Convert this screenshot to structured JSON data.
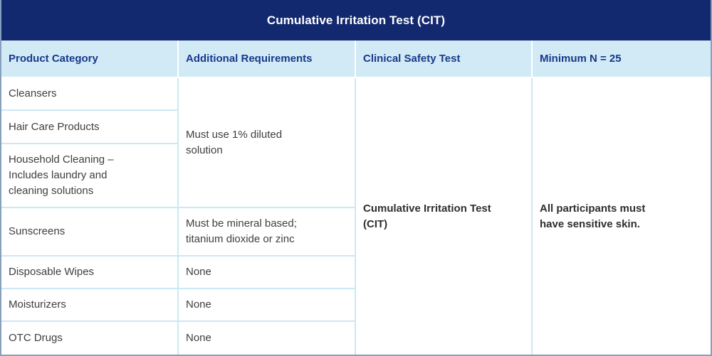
{
  "title": "Cumulative Irritation Test (CIT)",
  "colors": {
    "title_bg": "#13296F",
    "title_text": "#FFFFFF",
    "header_bg": "#D2EAF6",
    "header_text": "#17388C",
    "body_text": "#3E3E3E",
    "bold_text": "#2E2E2E",
    "row_line": "#CBE8F7",
    "frame": "#87A0BE"
  },
  "table": {
    "headers": [
      "Product Category",
      "Additional Requirements",
      "Clinical Safety Test",
      "Minimum N = 25"
    ],
    "rows": [
      {
        "product": "Cleansers",
        "requirement": "Must use 1% diluted solution",
        "requirement_rowspan": 3
      },
      {
        "product": "Hair Care Products"
      },
      {
        "product": "Household Cleaning – Includes laundry and cleaning solutions"
      },
      {
        "product": "Sunscreens",
        "requirement": "Must be mineral based; titanium dioxide or zinc"
      },
      {
        "product": "Disposable Wipes",
        "requirement": "None"
      },
      {
        "product": "Moisturizers",
        "requirement": "None"
      },
      {
        "product": "OTC Drugs",
        "requirement": "None"
      }
    ],
    "merged": {
      "clinical_safety_test": "Cumulative Irritation Test (CIT)",
      "minimum_n": "All participants must have sensitive skin."
    }
  }
}
